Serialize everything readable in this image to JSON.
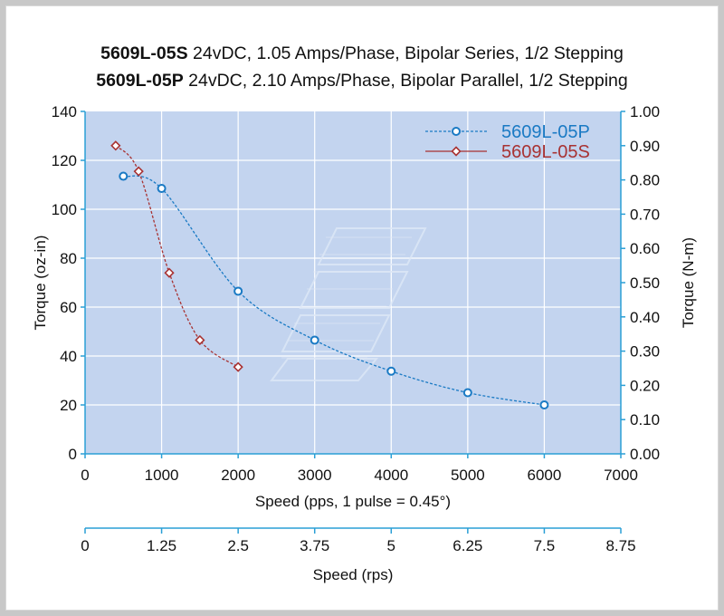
{
  "titles": [
    {
      "model": "5609L-05S",
      "spec": " 24vDC, 1.05 Amps/Phase, Bipolar Series, 1/2 Stepping"
    },
    {
      "model": "5609L-05P",
      "spec": " 24vDC, 2.10 Amps/Phase, Bipolar Parallel, 1/2 Stepping"
    }
  ],
  "chart_data": {
    "type": "line",
    "xlabel": "Speed (pps, 1 pulse = 0.45°)",
    "ylabel": "Torque (oz-in)",
    "y2label": "Torque (N-m)",
    "x2label": "Speed (rps)",
    "xlim": [
      0,
      7000
    ],
    "ylim": [
      0,
      140
    ],
    "y2lim": [
      0,
      1.0
    ],
    "x2lim": [
      0,
      8.75
    ],
    "xticks": [
      "0",
      "1000",
      "2000",
      "3000",
      "4000",
      "5000",
      "6000",
      "7000"
    ],
    "yticks": [
      "0",
      "20",
      "40",
      "60",
      "80",
      "100",
      "120",
      "140"
    ],
    "y2ticks": [
      "0.00",
      "0.10",
      "0.20",
      "0.30",
      "0.40",
      "0.50",
      "0.60",
      "0.70",
      "0.80",
      "0.90",
      "1.00"
    ],
    "x2ticks": [
      "0",
      "1.25",
      "2.5",
      "3.75",
      "5",
      "6.25",
      "7.5",
      "8.75"
    ],
    "grid": true,
    "legend_position": "top-right",
    "background": "#c3d4ef",
    "series": [
      {
        "name": "5609L-05P",
        "color": "#1a7ac4",
        "marker": "circle",
        "line": "dashed",
        "x": [
          500,
          1000,
          2000,
          3000,
          4000,
          5000,
          6000
        ],
        "y": [
          113.5,
          108.5,
          66.5,
          46.5,
          33.8,
          25,
          20
        ]
      },
      {
        "name": "5609L-05S",
        "color": "#a83232",
        "marker": "diamond",
        "line": "dashed",
        "x": [
          400,
          700,
          1100,
          1500,
          2000
        ],
        "y": [
          126,
          115.5,
          74,
          46.5,
          35.5
        ]
      }
    ]
  }
}
